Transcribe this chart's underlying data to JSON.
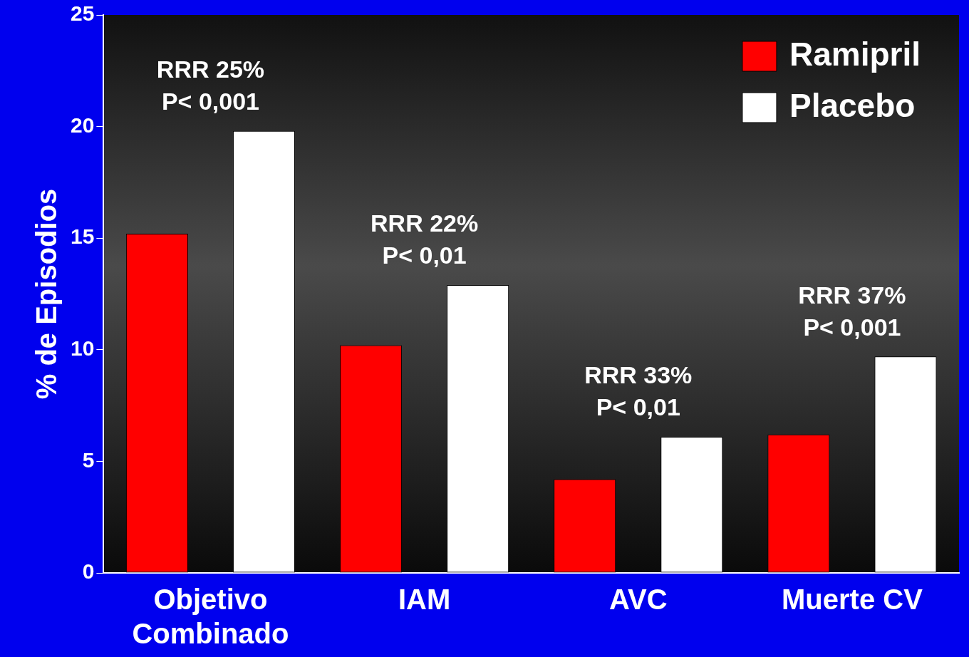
{
  "chart_data": {
    "type": "bar",
    "ylabel": "% de Episodios",
    "categories": [
      "Objetivo Combinado",
      "IAM",
      "AVC",
      "Muerte CV"
    ],
    "series": [
      {
        "name": "Ramipril",
        "color": "#ff0000",
        "values": [
          15.2,
          10.2,
          4.2,
          6.2
        ]
      },
      {
        "name": "Placebo",
        "color": "#ffffff",
        "values": [
          19.8,
          12.9,
          6.1,
          9.7
        ]
      }
    ],
    "ylim": [
      0,
      25
    ],
    "yticks": [
      0,
      5,
      10,
      15,
      20,
      25
    ],
    "grid": false,
    "legend": "top right",
    "annotations": [
      "RRR 25%\nP< 0,001",
      "RRR 22%\nP< 0,01",
      "RRR 33%\nP< 0,01",
      "RRR 37%\nP< 0,001"
    ]
  }
}
